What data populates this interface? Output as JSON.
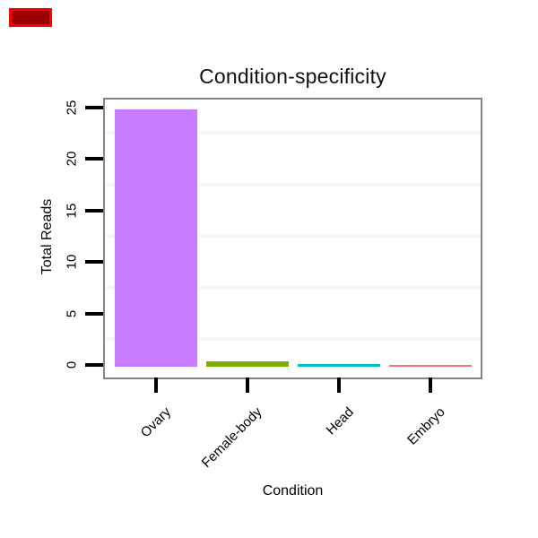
{
  "marker": {
    "fill": "#9b0000",
    "border_color": "#ff0000"
  },
  "chart_data": {
    "type": "bar",
    "title": "Condition-specificity",
    "xlabel": "Condition",
    "ylabel": "Total Reads",
    "categories": [
      "Ovary",
      "Female-body",
      "Head",
      "Embryo"
    ],
    "values": [
      25,
      0.5,
      0.3,
      0.2
    ],
    "bar_colors": [
      "#C77CFF",
      "#7CAE00",
      "#00BFC4",
      "#F8766D"
    ],
    "yticks": [
      0,
      5,
      10,
      15,
      20,
      25
    ],
    "ylim": [
      0,
      26
    ],
    "minor_gridlines": [
      2.5,
      7.5,
      12.5,
      17.5,
      22.5
    ],
    "grid": "faint minor horizontal gridlines only",
    "legend": "none",
    "x_label_rotation_deg": 45,
    "y_label_rotation_deg": 90,
    "panel_border_color": "#858585",
    "tick_color": "#000000",
    "background": "#ffffff"
  }
}
